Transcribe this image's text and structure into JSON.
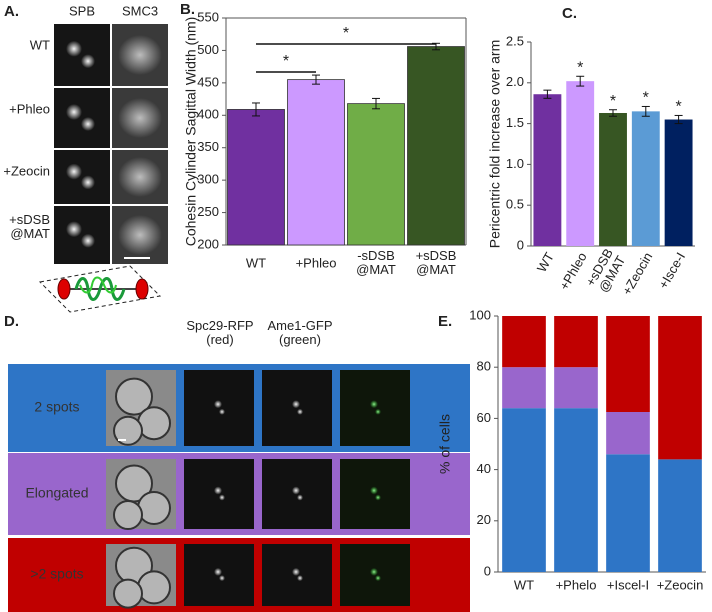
{
  "panel_a": {
    "label": "A.",
    "columns": [
      "SPB",
      "SMC3"
    ],
    "rows": [
      "WT",
      "+Phleo",
      "+Zeocin",
      "+sDSB\n@MAT"
    ]
  },
  "panel_d": {
    "label": "D.",
    "columns": [
      "Spc29-RFP\n(red)",
      "Ame1-GFP\n(green)"
    ],
    "rows": [
      "2 spots",
      "Elongated",
      ">2 spots"
    ]
  },
  "chart_data": [
    {
      "type": "bar",
      "panel_label": "B.",
      "ylabel": "Cohesin Cylinder Sagittal Width (nm)",
      "categories": [
        "WT",
        "+Phleo",
        "-sDSB\n@MAT",
        "+sDSB\n@MAT"
      ],
      "values": [
        409,
        455,
        418,
        506
      ],
      "errors": [
        10,
        7,
        8,
        5
      ],
      "colors": [
        "#7030a0",
        "#cc99ff",
        "#70ad47",
        "#375623"
      ],
      "ylim": [
        200,
        550
      ],
      "yticks": [
        200,
        250,
        300,
        350,
        400,
        450,
        500,
        550
      ],
      "annotations": [
        "*",
        "*"
      ]
    },
    {
      "type": "bar",
      "panel_label": "C.",
      "ylabel": "Pericentric fold increase over arm",
      "categories": [
        "WT",
        "+Phleo",
        "+sDSB\n@MAT",
        "+Zeocin",
        "+Isce-I"
      ],
      "values": [
        1.86,
        2.02,
        1.63,
        1.65,
        1.55
      ],
      "errors": [
        0.05,
        0.06,
        0.04,
        0.06,
        0.05
      ],
      "value_labels": [
        null,
        "*",
        "*",
        "*",
        "*"
      ],
      "colors": [
        "#7030a0",
        "#cc99ff",
        "#375623",
        "#5b9bd5",
        "#002060"
      ],
      "ylim": [
        0,
        2.5
      ],
      "yticks": [
        0,
        0.5,
        {
          "value": 1,
          "label": "1.0"
        },
        1.5,
        {
          "value": 2,
          "label": "2.0"
        },
        2.5
      ]
    },
    {
      "type": "stacked_bar",
      "panel_label": "E.",
      "ylabel": "% of cells",
      "categories": [
        "WT",
        "+Phelo",
        "+Iscel-I",
        "+Zeocin"
      ],
      "series": [
        {
          "color": "#2e75c6",
          "values": [
            64,
            64,
            46,
            44
          ]
        },
        {
          "color": "#9966cc",
          "values": [
            16,
            16,
            16.5,
            0
          ]
        },
        {
          "color": "#c00000",
          "values": [
            20,
            20,
            37.5,
            56
          ]
        }
      ],
      "ylim": [
        0,
        100
      ],
      "yticks": [
        0,
        20,
        40,
        60,
        80,
        100
      ]
    }
  ]
}
